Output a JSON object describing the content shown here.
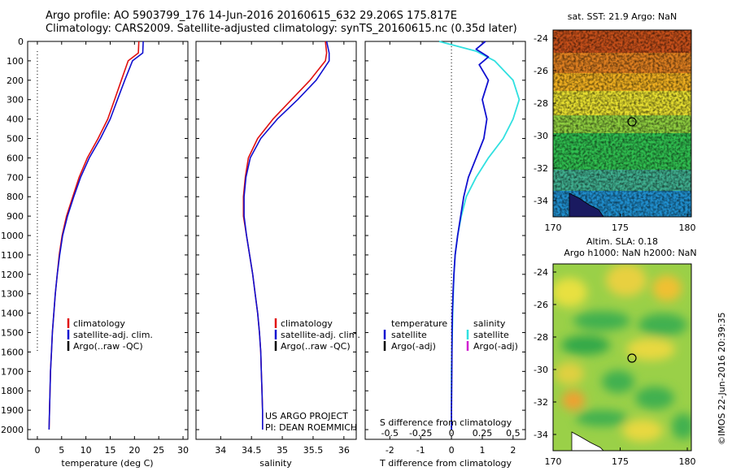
{
  "header": {
    "line1": "Argo profile: AO 5903799_176 14-Jun-2016 20160615_632 29.206S 175.817E",
    "line2": "Climatology: CARS2009. Satellite-adjusted climatology: synTS_20160615.nc (0.35d later)"
  },
  "colors": {
    "climatology": "#e01010",
    "satellite": "#1010d0",
    "argo": "#000000",
    "salinity_satellite": "#30e0e0",
    "salinity_argo": "#d020d0"
  },
  "chart_data": [
    {
      "type": "line",
      "panel": "temperature",
      "xlabel": "temperature (deg C)",
      "xlim": [
        -2,
        31
      ],
      "xticks": [
        "0",
        "5",
        "10",
        "15",
        "20",
        "25",
        "30"
      ],
      "ylim": [
        0,
        2050
      ],
      "yticks": [
        "0",
        "100",
        "200",
        "300",
        "400",
        "500",
        "600",
        "700",
        "800",
        "900",
        "1000",
        "1100",
        "1200",
        "1300",
        "1400",
        "1500",
        "1600",
        "1700",
        "1800",
        "1900",
        "2000"
      ],
      "series": [
        {
          "name": "climatology",
          "color": "#e01010",
          "x": [
            20.9,
            20.8,
            18.7,
            17.3,
            15.9,
            14.5,
            12.5,
            10.3,
            8.6,
            7.3,
            6.0,
            5.1,
            4.5,
            4.1,
            3.7,
            3.4,
            3.1,
            2.9,
            2.7,
            2.6,
            2.5,
            2.4
          ],
          "y": [
            0,
            60,
            100,
            200,
            300,
            400,
            500,
            600,
            700,
            800,
            900,
            1000,
            1100,
            1200,
            1300,
            1400,
            1500,
            1600,
            1700,
            1800,
            1900,
            2000
          ]
        },
        {
          "name": "satellite-adj. clim.",
          "color": "#1010d0",
          "x": [
            21.8,
            21.7,
            19.6,
            18.0,
            16.5,
            15.0,
            13.0,
            10.7,
            8.9,
            7.5,
            6.2,
            5.2,
            4.6,
            4.1,
            3.7,
            3.4,
            3.1,
            2.9,
            2.7,
            2.6,
            2.5,
            2.4
          ],
          "y": [
            0,
            60,
            100,
            200,
            300,
            400,
            500,
            600,
            700,
            800,
            900,
            1000,
            1100,
            1200,
            1300,
            1400,
            1500,
            1600,
            1700,
            1800,
            1900,
            2000
          ]
        }
      ],
      "reference_line": {
        "x": 0,
        "y_top": 50,
        "y_bottom": 1600
      },
      "legend": [
        "climatology",
        "satellite-adj. clim.",
        "Argo(..raw -QC)"
      ]
    },
    {
      "type": "line",
      "panel": "salinity",
      "xlabel": "salinity",
      "xlim": [
        33.6,
        36.2
      ],
      "xticks": [
        "34",
        "34.5",
        "35",
        "35.5",
        "36"
      ],
      "ylim": [
        0,
        2050
      ],
      "series": [
        {
          "name": "climatology",
          "color": "#e01010",
          "x": [
            35.7,
            35.72,
            35.7,
            35.45,
            35.15,
            34.85,
            34.6,
            34.45,
            34.4,
            34.37,
            34.37,
            34.42,
            34.47,
            34.52,
            34.56,
            34.6,
            34.63,
            34.65,
            34.66,
            34.67,
            34.68,
            34.68
          ],
          "y": [
            0,
            60,
            100,
            200,
            300,
            400,
            500,
            600,
            700,
            800,
            900,
            1000,
            1100,
            1200,
            1300,
            1400,
            1500,
            1600,
            1700,
            1800,
            1900,
            2000
          ]
        },
        {
          "name": "satellite-adj. clim.",
          "color": "#1010d0",
          "x": [
            35.72,
            35.76,
            35.76,
            35.55,
            35.25,
            34.92,
            34.65,
            34.48,
            34.41,
            34.38,
            34.38,
            34.42,
            34.47,
            34.52,
            34.56,
            34.6,
            34.63,
            34.65,
            34.66,
            34.67,
            34.68,
            34.68
          ],
          "y": [
            0,
            60,
            100,
            200,
            300,
            400,
            500,
            600,
            700,
            800,
            900,
            1000,
            1100,
            1200,
            1300,
            1400,
            1500,
            1600,
            1700,
            1800,
            1900,
            2000
          ]
        }
      ],
      "legend": [
        "climatology",
        "satellite-adj. clim.",
        "Argo(..raw -QC)"
      ],
      "note": [
        "US ARGO PROJECT",
        "PI: DEAN ROEMMICH"
      ]
    },
    {
      "type": "line",
      "panel": "difference",
      "xlabel_bottom": "T difference from climatology",
      "xlabel_top": "S difference from climatology",
      "xlim_T": [
        -2.8,
        2.4
      ],
      "xticks_T": [
        "-2",
        "-1",
        "0",
        "1",
        "2"
      ],
      "xticks_S": [
        "-0.5",
        "-0.25",
        "0",
        "0.25",
        "0.5"
      ],
      "ylim": [
        0,
        2050
      ],
      "series": [
        {
          "name": "temperature satellite",
          "color": "#1010d0",
          "x": [
            1.1,
            0.8,
            1.2,
            0.9,
            1.2,
            1.0,
            1.15,
            1.05,
            0.8,
            0.55,
            0.4,
            0.3,
            0.2,
            0.12,
            0.08,
            0.05,
            0.03,
            0.02,
            0.01,
            0.0,
            0.0
          ],
          "y": [
            0,
            40,
            80,
            120,
            200,
            300,
            400,
            500,
            600,
            700,
            800,
            900,
            1000,
            1100,
            1200,
            1300,
            1400,
            1500,
            1700,
            1900,
            2000
          ]
        },
        {
          "name": "salinity satellite",
          "color": "#30e0e0",
          "x": [
            -0.1,
            0.2,
            0.35,
            0.5,
            0.55,
            0.5,
            0.42,
            0.3,
            0.2,
            0.12,
            0.08,
            0.05,
            0.03,
            0.02,
            0.01,
            0.0,
            0.0
          ],
          "y": [
            0,
            50,
            100,
            200,
            300,
            400,
            500,
            600,
            700,
            800,
            900,
            1000,
            1100,
            1200,
            1400,
            1700,
            2000
          ]
        }
      ],
      "reference_line": {
        "x": 0
      },
      "legend_temperature": {
        "title": "temperature",
        "items": [
          "satellite",
          "Argo(-adj)"
        ]
      },
      "legend_salinity": {
        "title": "salinity",
        "items": [
          "satellite",
          "Argo(-adj)"
        ]
      }
    },
    {
      "type": "heatmap",
      "panel": "sst_map",
      "title": "sat. SST: 21.9  Argo: NaN",
      "xlim": [
        170,
        180.3
      ],
      "ylim": [
        -35,
        -23.5
      ],
      "xticks": [
        "170",
        "175",
        "180"
      ],
      "yticks": [
        "-24",
        "-26",
        "-28",
        "-30",
        "-32",
        "-34"
      ],
      "profile_location": {
        "lon": 175.817,
        "lat": -29.206
      }
    },
    {
      "type": "heatmap",
      "panel": "sla_map",
      "title_lines": [
        "Altim. SLA: 0.18",
        "Argo h1000: NaN h2000: NaN"
      ],
      "xlim": [
        170,
        180.3
      ],
      "ylim": [
        -35,
        -23.5
      ],
      "xticks": [
        "170",
        "175",
        "180"
      ],
      "yticks": [
        "-24",
        "-26",
        "-28",
        "-30",
        "-32",
        "-34"
      ],
      "profile_location": {
        "lon": 175.817,
        "lat": -29.206
      }
    }
  ],
  "credit": "©IMOS 22-Jun-2016 20:39:35"
}
